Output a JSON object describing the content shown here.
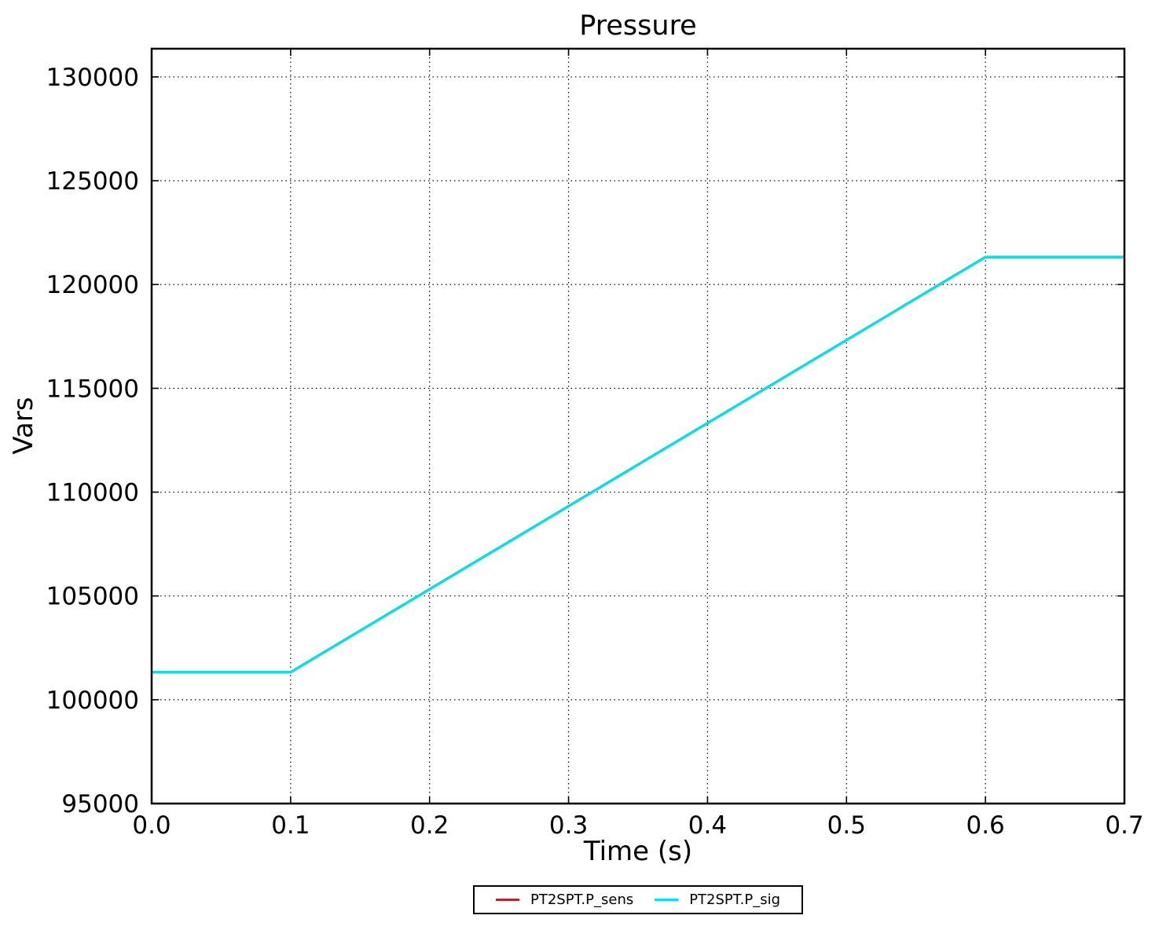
{
  "chart_data": {
    "type": "line",
    "title": "Pressure",
    "xlabel": "Time (s)",
    "ylabel": "Vars",
    "xlim": [
      0.0,
      0.7
    ],
    "ylim": [
      95000,
      131360
    ],
    "xticks": [
      0.0,
      0.1,
      0.2,
      0.3,
      0.4,
      0.5,
      0.6,
      0.7
    ],
    "xtick_labels": [
      "0.0",
      "0.1",
      "0.2",
      "0.3",
      "0.4",
      "0.5",
      "0.6",
      "0.7"
    ],
    "yticks": [
      95000,
      100000,
      105000,
      110000,
      115000,
      120000,
      125000,
      130000
    ],
    "ytick_labels": [
      "95000",
      "100000",
      "105000",
      "110000",
      "115000",
      "120000",
      "125000",
      "130000"
    ],
    "grid": "dotted",
    "frame_color": "#000000",
    "background_color": "#ffffff",
    "legend_position": "bottom-center",
    "x": [
      0.0,
      0.1,
      0.6,
      0.7
    ],
    "series": [
      {
        "name": "PT2SPT.P_sens",
        "color": "#b22828",
        "values": [
          101325,
          101325,
          121325,
          121325
        ]
      },
      {
        "name": "PT2SPT.P_sig",
        "color": "#00e1ec",
        "values": [
          101325,
          101325,
          121325,
          121325
        ]
      }
    ]
  }
}
